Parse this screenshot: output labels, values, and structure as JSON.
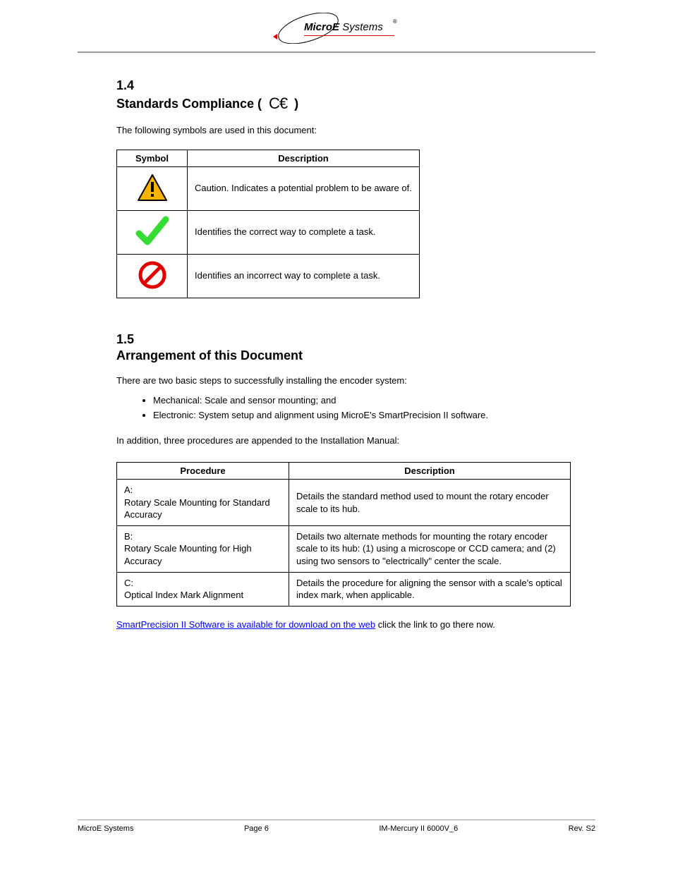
{
  "logo": {
    "micro": "Micro",
    "e": "E",
    "systems": " Systems"
  },
  "sections": {
    "s4": {
      "num": "1.4",
      "title_prefix": "Standards Compliance ( ",
      "title_suffix": " )"
    },
    "s4_para": "The following symbols are used in this document:",
    "sym_table": {
      "h1": "Symbol",
      "h2": "Description",
      "r1": "Caution. Indicates a potential problem to be aware of.",
      "r2": "Identifies the correct way to complete a task.",
      "r3": "Identifies an incorrect way to complete a task."
    },
    "s5": {
      "num": "1.5",
      "title": "Arrangement of this Document"
    },
    "s5_para": "There are two basic steps to successfully installing the encoder system:",
    "bullets": {
      "b1": "Mechanical: Scale and sensor mounting; and",
      "b2": "Electronic: System setup and alignment using MicroE's SmartPrecision II software."
    },
    "s5_para2": "In addition, three procedures are appended to the Installation Manual:",
    "proc_table": {
      "h1": "Procedure",
      "h2": "Description",
      "r1a": "A:\nRotary Scale Mounting for Standard Accuracy",
      "r1b": "Details the standard method used to mount the rotary encoder scale to its hub.",
      "r2a": "B:\nRotary Scale Mounting for High Accuracy",
      "r2b": "Details two alternate methods for mounting the rotary encoder scale to its hub: (1) using a microscope or CCD camera; and (2) using two sensors to \"electrically\" center the scale.",
      "r3a": "C:\nOptical Index Mark Alignment",
      "r3b": "Details the procedure for aligning the sensor with a scale's optical index mark, when applicable."
    },
    "link": "SmartPrecision II Software is available for download on the web",
    "link_after": " click the link to go there now."
  },
  "footer": {
    "left": "MicroE Systems",
    "center": "Page 6",
    "right": "IM-Mercury II 6000V_6",
    "right2": "Rev. S2"
  }
}
